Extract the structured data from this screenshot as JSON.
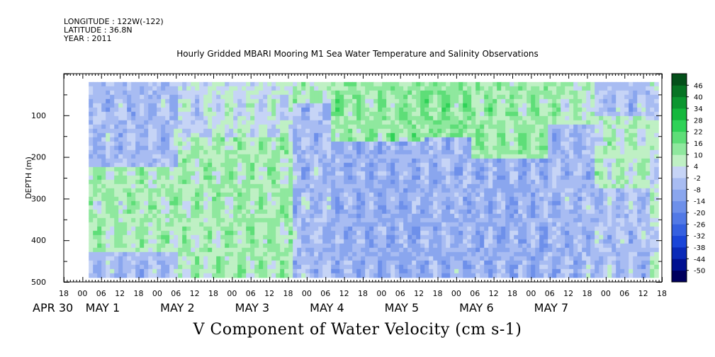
{
  "header": {
    "longitude": "LONGITUDE : 122W(-122)",
    "latitude": "LATITUDE : 36.8N",
    "year": "YEAR : 2011"
  },
  "chart_data": {
    "type": "heatmap",
    "title": "Hourly Gridded MBARI Mooring M1 Sea Water Temperature and Salinity Observations",
    "xlabel": "V Component of Water Velocity (cm s-1)",
    "ylabel": "DEPTH (m)",
    "ylim": [
      500,
      0
    ],
    "y_ticks": [
      100,
      200,
      300,
      400,
      500
    ],
    "x_range_hours": [
      -6,
      186
    ],
    "x_hour_ticks": [
      "18",
      "00",
      "06",
      "12",
      "18",
      "00",
      "06",
      "12",
      "18",
      "00",
      "06",
      "12",
      "18",
      "00",
      "06",
      "12",
      "18",
      "00",
      "06",
      "12",
      "18",
      "00",
      "06",
      "12",
      "18",
      "00",
      "06",
      "12",
      "18",
      "00",
      "06",
      "12",
      "18"
    ],
    "x_day_labels": [
      "APR 30",
      "MAY  1",
      "MAY  2",
      "MAY  3",
      "MAY  4",
      "MAY  5",
      "MAY  6",
      "MAY  7"
    ],
    "data_depth_range": [
      20,
      485
    ],
    "colorbar": {
      "levels": [
        -50,
        -44,
        -38,
        -32,
        -26,
        -20,
        -14,
        -8,
        -2,
        4,
        10,
        16,
        22,
        28,
        34,
        40,
        46
      ],
      "labels": [
        "46",
        "40",
        "34",
        "28",
        "22",
        "16",
        "10",
        "4",
        "-2",
        "-8",
        "-14",
        "-20",
        "-26",
        "-32",
        "-38",
        "-44",
        "-50"
      ],
      "colors": [
        "#00005e",
        "#001090",
        "#0a2ab8",
        "#1a45d8",
        "#3560e0",
        "#5279e6",
        "#6e90ea",
        "#8aa6ee",
        "#a8bcf2",
        "#c6d4f6",
        "#bff0c4",
        "#8fe89e",
        "#5ede78",
        "#2fd257",
        "#15b83d",
        "#0c9630",
        "#077424",
        "#04501a"
      ]
    }
  }
}
